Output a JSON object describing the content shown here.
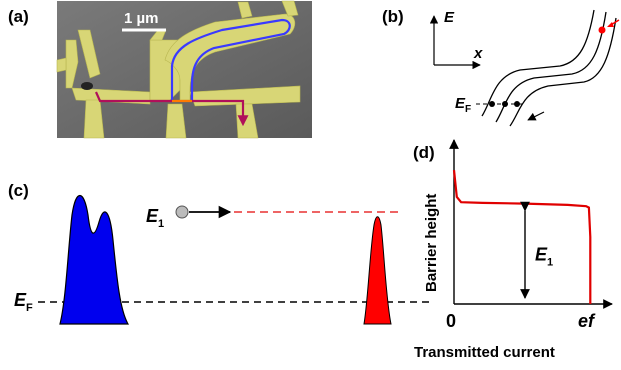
{
  "panels": {
    "a": {
      "label": "(a)",
      "scale_bar": "1 µm"
    },
    "b": {
      "label": "(b)",
      "axis_y": "E",
      "axis_x": "x",
      "fermi": "E",
      "fermi_sub": "F"
    },
    "c": {
      "label": "(c)",
      "energy_level": "E",
      "energy_level_sub": "1",
      "fermi": "E",
      "fermi_sub": "F"
    },
    "d": {
      "label": "(d)",
      "ylabel": "Barrier height",
      "xlabel": "Transmitted current",
      "x_tick_0": "0",
      "x_tick_ef": "ef",
      "annot": "E",
      "annot_sub": "1"
    }
  },
  "colors": {
    "sem_bg": "#6e6e6e",
    "gate_yellow": "#d8d676",
    "path_blue": "#3a3aff",
    "path_red": "#b0105a",
    "hole_blue": "#0000ee",
    "electron_red": "#ff0000",
    "dash_red": "#e83030",
    "curve_red": "#e00000"
  },
  "chart_data": {
    "type": "line",
    "title": "",
    "xlabel": "Transmitted current",
    "ylabel": "Barrier height",
    "x_tick_labels": [
      "0",
      "ef"
    ],
    "annotation": "E1",
    "series": [
      {
        "x": [
          0.0,
          0.02,
          0.05,
          0.2,
          0.5,
          0.8,
          0.93,
          0.95,
          0.96,
          0.96
        ],
        "y": [
          1.0,
          0.8,
          0.76,
          0.755,
          0.75,
          0.74,
          0.73,
          0.72,
          0.5,
          0.0
        ]
      }
    ],
    "xlim": [
      0,
      1
    ],
    "ylim": [
      0,
      1.15
    ],
    "grid": false
  }
}
